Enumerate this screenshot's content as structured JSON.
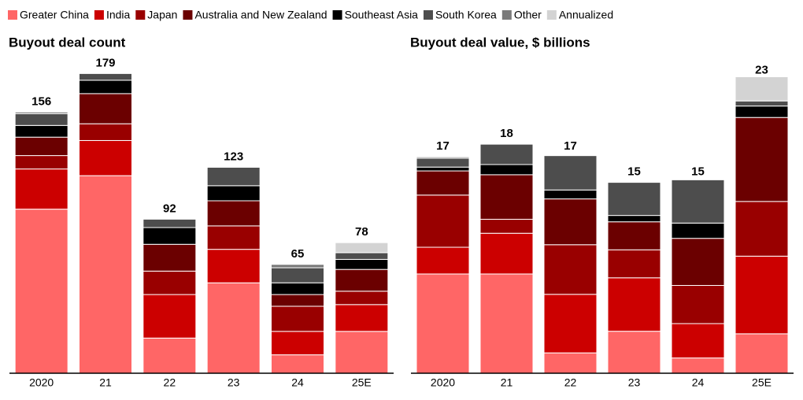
{
  "chart_data": [
    {
      "type": "stacked-bar",
      "title": "Buyout deal count",
      "categories": [
        "2020",
        "21",
        "22",
        "23",
        "24",
        "25E"
      ],
      "totals": [
        156,
        179,
        92,
        123,
        65,
        78
      ],
      "ylim": [
        0,
        190
      ],
      "series": [
        {
          "name": "Greater China",
          "color": "#ff6666",
          "values": [
            98,
            118,
            21,
            54,
            11,
            25
          ]
        },
        {
          "name": "India",
          "color": "#cc0000",
          "values": [
            24,
            21,
            26,
            20,
            14,
            16
          ]
        },
        {
          "name": "Japan",
          "color": "#990000",
          "values": [
            8,
            10,
            14,
            14,
            15,
            8
          ]
        },
        {
          "name": "Australia and New Zealand",
          "color": "#6b0000",
          "values": [
            11,
            18,
            16,
            15,
            7,
            13
          ]
        },
        {
          "name": "Southeast Asia",
          "color": "#000000",
          "values": [
            7,
            8,
            10,
            9,
            7,
            6
          ]
        },
        {
          "name": "South Korea",
          "color": "#4d4d4d",
          "values": [
            7,
            4,
            5,
            11,
            9,
            4
          ]
        },
        {
          "name": "Other",
          "color": "#7a7a7a",
          "values": [
            1,
            0,
            0,
            0,
            2,
            0
          ]
        },
        {
          "name": "Annualized",
          "color": "#d3d3d3",
          "values": [
            0,
            0,
            0,
            0,
            0,
            6
          ]
        }
      ]
    },
    {
      "type": "stacked-bar",
      "title": "Buyout deal value, $ billions",
      "categories": [
        "2020",
        "21",
        "22",
        "23",
        "24",
        "25E"
      ],
      "totals": [
        17,
        18,
        17,
        15,
        15,
        23
      ],
      "ylim": [
        0,
        25
      ],
      "series": [
        {
          "name": "Greater China",
          "color": "#ff6666",
          "values": [
            7.8,
            7.8,
            1.6,
            3.3,
            1.2,
            3.1
          ]
        },
        {
          "name": "India",
          "color": "#cc0000",
          "values": [
            2.1,
            3.2,
            4.6,
            4.2,
            2.7,
            6.1
          ]
        },
        {
          "name": "Japan",
          "color": "#990000",
          "values": [
            4.1,
            1.1,
            3.9,
            2.2,
            3.0,
            4.3
          ]
        },
        {
          "name": "Australia and New Zealand",
          "color": "#6b0000",
          "values": [
            1.9,
            3.5,
            3.6,
            2.2,
            3.7,
            6.6
          ]
        },
        {
          "name": "Southeast Asia",
          "color": "#000000",
          "values": [
            0.3,
            0.8,
            0.7,
            0.5,
            1.2,
            0.9
          ]
        },
        {
          "name": "South Korea",
          "color": "#4d4d4d",
          "values": [
            0.7,
            1.6,
            2.7,
            2.6,
            3.4,
            0.4
          ]
        },
        {
          "name": "Other",
          "color": "#7a7a7a",
          "values": [
            0.1,
            0,
            0,
            0,
            0,
            0
          ]
        },
        {
          "name": "Annualized",
          "color": "#d3d3d3",
          "values": [
            0,
            0,
            0,
            0,
            0,
            1.9
          ]
        }
      ]
    }
  ]
}
